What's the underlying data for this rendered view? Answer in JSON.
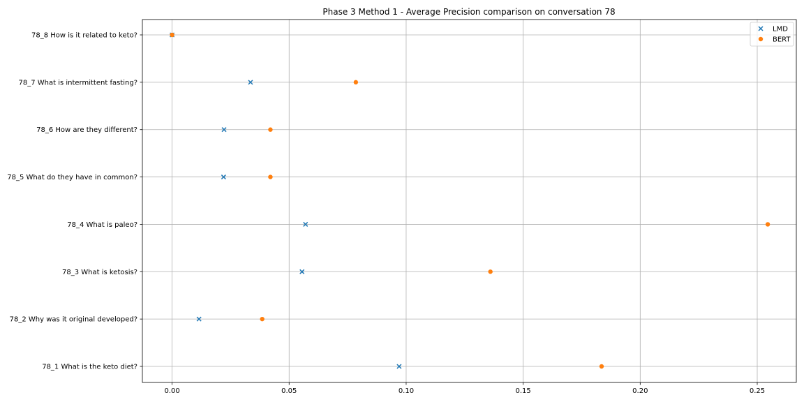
{
  "chart_data": {
    "type": "scatter",
    "title": "Phase 3 Method 1 - Average Precision comparison on conversation 78",
    "xlabel": "",
    "ylabel": "",
    "categories": [
      "78_1 What is the keto diet?",
      "78_2 Why was it original developed?",
      "78_3 What is ketosis?",
      "78_4 What is paleo?",
      "78_5 What do they have in common?",
      "78_6 How are they different?",
      "78_7 What is intermittent fasting?",
      "78_8 How is it related to keto?"
    ],
    "xticks": [
      "0.00",
      "0.05",
      "0.10",
      "0.15",
      "0.20",
      "0.25"
    ],
    "xtick_values": [
      0.0,
      0.05,
      0.1,
      0.15,
      0.2,
      0.25
    ],
    "xlim": [
      -0.0127,
      0.2667
    ],
    "grid": true,
    "legend_position": "top-right",
    "series": [
      {
        "name": "LMD",
        "marker": "x",
        "color": "#1f77b4",
        "values": [
          0.097,
          0.0115,
          0.0555,
          0.057,
          0.022,
          0.0222,
          0.0335,
          0.0
        ]
      },
      {
        "name": "BERT",
        "marker": "o",
        "color": "#ff7f0e",
        "values": [
          0.1835,
          0.0385,
          0.136,
          0.2545,
          0.042,
          0.042,
          0.0785,
          0.0
        ]
      }
    ]
  }
}
